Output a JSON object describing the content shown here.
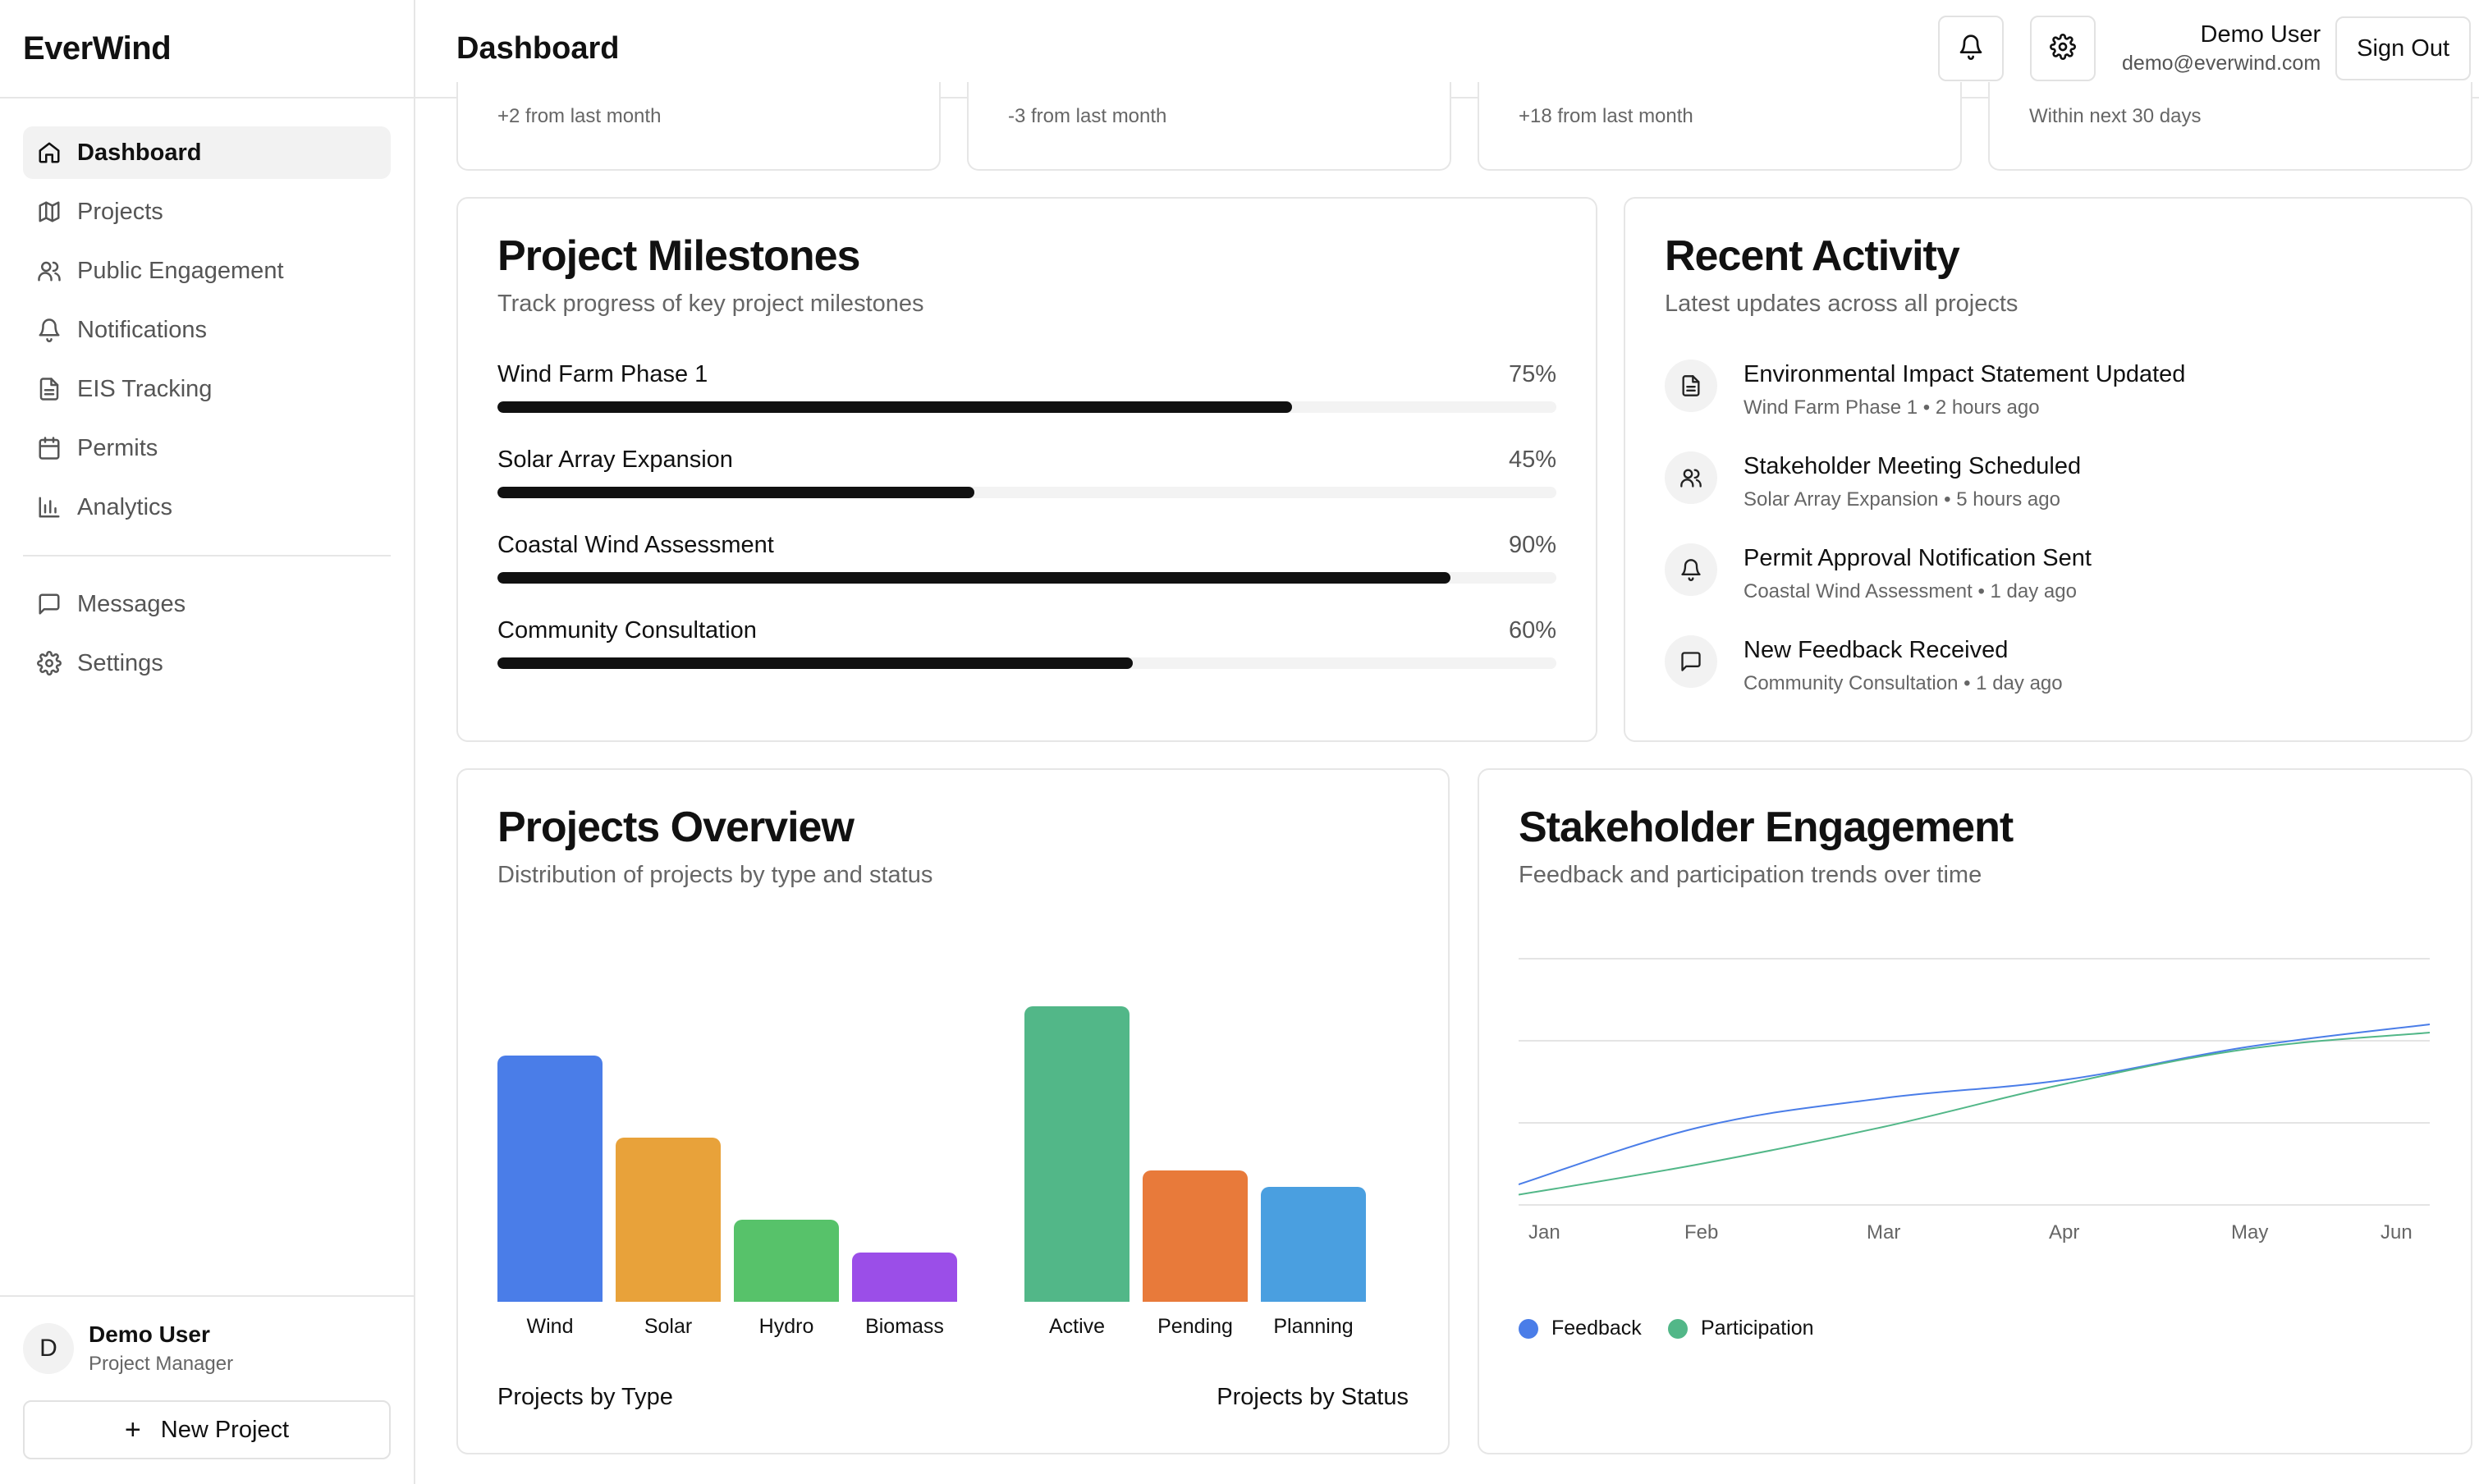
{
  "app": {
    "name": "EverWind"
  },
  "header": {
    "title": "Dashboard",
    "user_name": "Demo User",
    "user_email": "demo@everwind.com",
    "signout_label": "Sign Out"
  },
  "sidebar": {
    "items": [
      {
        "label": "Dashboard",
        "icon": "home-icon"
      },
      {
        "label": "Projects",
        "icon": "map-icon"
      },
      {
        "label": "Public Engagement",
        "icon": "users-icon"
      },
      {
        "label": "Notifications",
        "icon": "bell-icon"
      },
      {
        "label": "EIS Tracking",
        "icon": "document-icon"
      },
      {
        "label": "Permits",
        "icon": "calendar-icon"
      },
      {
        "label": "Analytics",
        "icon": "bar-chart-icon"
      }
    ],
    "secondary": [
      {
        "label": "Messages",
        "icon": "message-icon"
      },
      {
        "label": "Settings",
        "icon": "gear-icon"
      }
    ],
    "user": {
      "initial": "D",
      "name": "Demo User",
      "role": "Project Manager"
    },
    "new_project_label": "New Project"
  },
  "stats": [
    {
      "change": "+2 from last month"
    },
    {
      "change": "-3 from last month"
    },
    {
      "change": "+18 from last month"
    },
    {
      "change": "Within next 30 days"
    }
  ],
  "milestones": {
    "title": "Project Milestones",
    "subtitle": "Track progress of key project milestones",
    "items": [
      {
        "label": "Wind Farm Phase 1",
        "percent_label": "75%",
        "value": 75
      },
      {
        "label": "Solar Array Expansion",
        "percent_label": "45%",
        "value": 45
      },
      {
        "label": "Coastal Wind Assessment",
        "percent_label": "90%",
        "value": 90
      },
      {
        "label": "Community Consultation",
        "percent_label": "60%",
        "value": 60
      }
    ]
  },
  "activity": {
    "title": "Recent Activity",
    "subtitle": "Latest updates across all projects",
    "items": [
      {
        "title": "Environmental Impact Statement Updated",
        "meta": "Wind Farm Phase 1 • 2 hours ago",
        "icon": "document-icon"
      },
      {
        "title": "Stakeholder Meeting Scheduled",
        "meta": "Solar Array Expansion • 5 hours ago",
        "icon": "users-icon"
      },
      {
        "title": "Permit Approval Notification Sent",
        "meta": "Coastal Wind Assessment • 1 day ago",
        "icon": "bell-icon"
      },
      {
        "title": "New Feedback Received",
        "meta": "Community Consultation • 1 day ago",
        "icon": "message-icon"
      }
    ]
  },
  "overview": {
    "title": "Projects Overview",
    "subtitle": "Distribution of projects by type and status",
    "by_type_label": "Projects by Type",
    "by_status_label": "Projects by Status"
  },
  "engagement": {
    "title": "Stakeholder Engagement",
    "subtitle": "Feedback and participation trends over time"
  },
  "chart_data": [
    {
      "type": "bar",
      "title": "Projects by Type",
      "categories": [
        "Wind",
        "Solar",
        "Hydro",
        "Biomass"
      ],
      "values": [
        15,
        10,
        5,
        3
      ],
      "colors": [
        "#4a7de8",
        "#e8a23a",
        "#57c26a",
        "#9b4ee8"
      ],
      "ylim": [
        0,
        18
      ]
    },
    {
      "type": "bar",
      "title": "Projects by Status",
      "categories": [
        "Active",
        "Pending",
        "Planning"
      ],
      "values": [
        18,
        8,
        7
      ],
      "colors": [
        "#52b788",
        "#e87a3a",
        "#4a9fe0"
      ],
      "ylim": [
        0,
        18
      ]
    },
    {
      "type": "line",
      "title": "Stakeholder Engagement",
      "x": [
        "Jan",
        "Feb",
        "Mar",
        "Apr",
        "May",
        "Jun"
      ],
      "series": [
        {
          "name": "Feedback",
          "color": "#4a7de8",
          "values": [
            10,
            38,
            52,
            61,
            77,
            88
          ]
        },
        {
          "name": "Participation",
          "color": "#52b788",
          "values": [
            5,
            20,
            38,
            59,
            76,
            84
          ]
        }
      ],
      "ylim": [
        0,
        120
      ],
      "grid": true,
      "legend": "bottom-left"
    }
  ]
}
